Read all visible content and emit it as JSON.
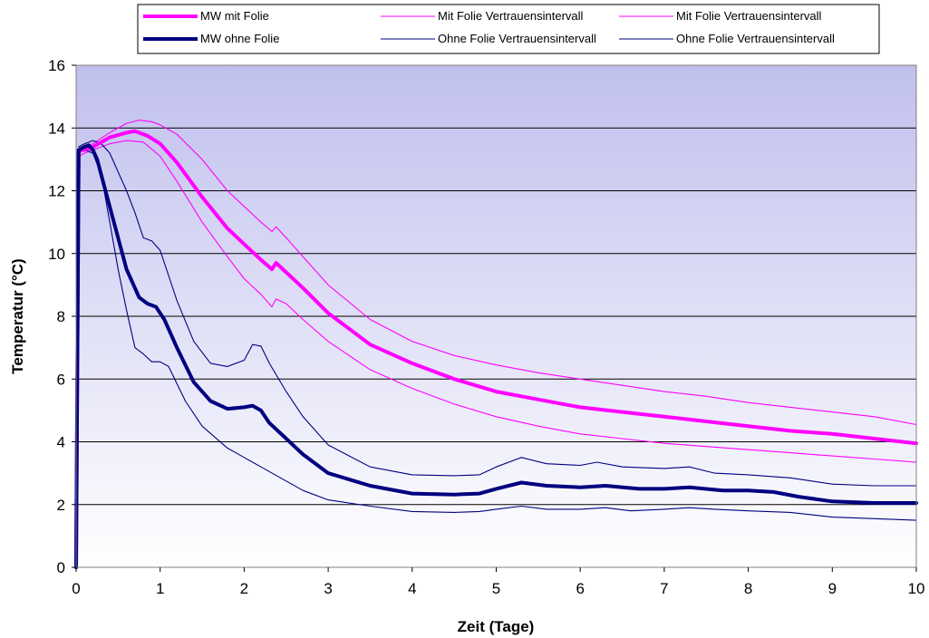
{
  "chart_data": {
    "type": "line",
    "title": "",
    "xlabel": "Zeit (Tage)",
    "ylabel": "Temperatur (°C)",
    "xlim": [
      0,
      10
    ],
    "ylim": [
      0,
      16
    ],
    "xticks": [
      0,
      1,
      2,
      3,
      4,
      5,
      6,
      7,
      8,
      9,
      10
    ],
    "yticks": [
      0,
      2,
      4,
      6,
      8,
      10,
      12,
      14,
      16
    ],
    "grid": "horizontal",
    "legend_position": "top",
    "background": "blue-to-white vertical gradient",
    "series": [
      {
        "name": "MW mit Folie",
        "color": "#ff00ff",
        "style": "thick",
        "x": [
          0,
          0.03,
          0.1,
          0.2,
          0.4,
          0.6,
          0.7,
          0.85,
          1.0,
          1.2,
          1.5,
          1.8,
          2.0,
          2.2,
          2.33,
          2.38,
          2.5,
          2.7,
          3.0,
          3.5,
          4.0,
          4.5,
          5.0,
          5.5,
          6.0,
          6.5,
          7.0,
          7.5,
          8.0,
          8.5,
          9.0,
          9.5,
          10.0
        ],
        "y": [
          0,
          13.3,
          13.3,
          13.4,
          13.7,
          13.85,
          13.9,
          13.75,
          13.5,
          12.9,
          11.8,
          10.8,
          10.3,
          9.8,
          9.5,
          9.7,
          9.4,
          8.9,
          8.1,
          7.1,
          6.5,
          6.0,
          5.6,
          5.35,
          5.1,
          4.95,
          4.8,
          4.65,
          4.5,
          4.35,
          4.25,
          4.1,
          3.95
        ]
      },
      {
        "name": "Mit Folie Vertrauensintervall",
        "color": "#ff00ff",
        "style": "thin",
        "x": [
          0.03,
          0.1,
          0.2,
          0.4,
          0.6,
          0.75,
          0.9,
          1.0,
          1.2,
          1.5,
          1.8,
          2.0,
          2.2,
          2.33,
          2.38,
          2.5,
          2.7,
          3.0,
          3.5,
          4.0,
          4.5,
          5.0,
          5.5,
          6.0,
          6.5,
          7.0,
          7.5,
          8.0,
          8.5,
          9.0,
          9.5,
          10.0
        ],
        "y": [
          13.3,
          13.4,
          13.5,
          13.85,
          14.15,
          14.25,
          14.2,
          14.1,
          13.8,
          13.0,
          12.0,
          11.5,
          11.0,
          10.7,
          10.85,
          10.5,
          9.9,
          9.0,
          7.9,
          7.2,
          6.75,
          6.45,
          6.2,
          6.0,
          5.8,
          5.6,
          5.45,
          5.25,
          5.1,
          4.95,
          4.8,
          4.55
        ]
      },
      {
        "name": "Mit Folie Vertrauensintervall",
        "color": "#ff00ff",
        "style": "thin",
        "x": [
          0.03,
          0.1,
          0.2,
          0.4,
          0.6,
          0.8,
          1.0,
          1.2,
          1.5,
          1.8,
          2.0,
          2.2,
          2.33,
          2.38,
          2.5,
          2.7,
          3.0,
          3.5,
          4.0,
          4.5,
          5.0,
          5.5,
          6.0,
          6.5,
          7.0,
          7.5,
          8.0,
          8.5,
          9.0,
          9.5,
          10.0
        ],
        "y": [
          13.1,
          13.2,
          13.3,
          13.5,
          13.6,
          13.55,
          13.1,
          12.3,
          11.0,
          9.9,
          9.2,
          8.7,
          8.3,
          8.55,
          8.4,
          7.9,
          7.2,
          6.3,
          5.7,
          5.2,
          4.8,
          4.5,
          4.25,
          4.1,
          3.95,
          3.85,
          3.75,
          3.65,
          3.55,
          3.45,
          3.35
        ]
      },
      {
        "name": "MW ohne Folie",
        "color": "#000080",
        "style": "thick",
        "x": [
          0,
          0.03,
          0.1,
          0.15,
          0.2,
          0.25,
          0.35,
          0.5,
          0.6,
          0.75,
          0.85,
          0.95,
          1.05,
          1.2,
          1.4,
          1.6,
          1.8,
          2.0,
          2.1,
          2.2,
          2.3,
          2.5,
          2.7,
          3.0,
          3.5,
          4.0,
          4.5,
          4.8,
          5.0,
          5.3,
          5.6,
          6.0,
          6.3,
          6.7,
          7.0,
          7.3,
          7.7,
          8.0,
          8.3,
          8.6,
          9.0,
          9.5,
          10.0
        ],
        "y": [
          0,
          13.3,
          13.4,
          13.45,
          13.3,
          13.0,
          12.0,
          10.5,
          9.5,
          8.6,
          8.4,
          8.3,
          7.9,
          7.0,
          5.9,
          5.3,
          5.05,
          5.1,
          5.15,
          5.0,
          4.6,
          4.1,
          3.6,
          3.0,
          2.6,
          2.35,
          2.32,
          2.35,
          2.5,
          2.7,
          2.6,
          2.55,
          2.6,
          2.5,
          2.5,
          2.55,
          2.45,
          2.45,
          2.4,
          2.25,
          2.1,
          2.05,
          2.05
        ]
      },
      {
        "name": "Ohne Folie Vertrauensintervall",
        "color": "#000080",
        "style": "thin",
        "x": [
          0.03,
          0.1,
          0.2,
          0.3,
          0.4,
          0.5,
          0.6,
          0.7,
          0.8,
          0.9,
          1.0,
          1.1,
          1.2,
          1.4,
          1.6,
          1.8,
          2.0,
          2.1,
          2.2,
          2.3,
          2.5,
          2.7,
          3.0,
          3.5,
          4.0,
          4.5,
          4.8,
          5.0,
          5.3,
          5.6,
          6.0,
          6.2,
          6.5,
          7.0,
          7.3,
          7.6,
          8.0,
          8.5,
          9.0,
          9.5,
          10.0
        ],
        "y": [
          13.4,
          13.5,
          13.6,
          13.5,
          13.2,
          12.6,
          12.0,
          11.3,
          10.5,
          10.4,
          10.1,
          9.3,
          8.5,
          7.2,
          6.5,
          6.4,
          6.6,
          7.1,
          7.05,
          6.5,
          5.6,
          4.8,
          3.9,
          3.2,
          2.95,
          2.92,
          2.95,
          3.2,
          3.5,
          3.3,
          3.25,
          3.35,
          3.2,
          3.15,
          3.2,
          3.0,
          2.95,
          2.85,
          2.65,
          2.6,
          2.6
        ]
      },
      {
        "name": "Ohne Folie Vertrauensintervall",
        "color": "#000080",
        "style": "thin",
        "x": [
          0.03,
          0.1,
          0.2,
          0.3,
          0.4,
          0.5,
          0.6,
          0.7,
          0.8,
          0.9,
          1.0,
          1.1,
          1.3,
          1.5,
          1.8,
          2.0,
          2.2,
          2.5,
          2.7,
          3.0,
          3.5,
          4.0,
          4.5,
          4.8,
          5.0,
          5.3,
          5.6,
          6.0,
          6.3,
          6.6,
          7.0,
          7.3,
          7.6,
          8.0,
          8.5,
          9.0,
          9.5,
          10.0
        ],
        "y": [
          13.2,
          13.3,
          13.2,
          12.5,
          11.0,
          9.5,
          8.2,
          7.0,
          6.8,
          6.55,
          6.55,
          6.4,
          5.3,
          4.5,
          3.8,
          3.5,
          3.2,
          2.75,
          2.45,
          2.15,
          1.95,
          1.78,
          1.75,
          1.78,
          1.85,
          1.95,
          1.85,
          1.85,
          1.9,
          1.8,
          1.85,
          1.9,
          1.85,
          1.8,
          1.75,
          1.6,
          1.55,
          1.5
        ]
      }
    ]
  }
}
